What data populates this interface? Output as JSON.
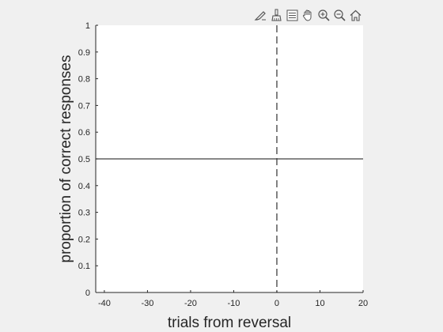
{
  "toolbar": {
    "icons": [
      "brush-edit-icon",
      "data-cursor-icon",
      "legend-icon",
      "pan-hand-icon",
      "zoom-in-icon",
      "zoom-out-icon",
      "home-icon"
    ]
  },
  "colors": {
    "figure_bg": "#f0f0f0",
    "axes_bg": "#ffffff",
    "axis_line": "#262626",
    "chance_line": "#404040",
    "reversal_line": "#404040"
  },
  "chart_data": {
    "type": "line",
    "title": "",
    "xlabel": "trials from reversal",
    "ylabel": "proportion of correct responses",
    "xlim": [
      -42,
      20
    ],
    "ylim": [
      0,
      1
    ],
    "xticks": [
      -40,
      -30,
      -20,
      -10,
      0,
      10,
      20
    ],
    "xtick_labels": [
      "-40",
      "-30",
      "-20",
      "-10",
      "0",
      "10",
      "20"
    ],
    "yticks": [
      0,
      0.1,
      0.2,
      0.3,
      0.4,
      0.5,
      0.6,
      0.7,
      0.8,
      0.9,
      1
    ],
    "ytick_labels": [
      "0",
      "0.1",
      "0.2",
      "0.3",
      "0.4",
      "0.5",
      "0.6",
      "0.7",
      "0.8",
      "0.9",
      "1"
    ],
    "grid": false,
    "reference_lines": [
      {
        "orientation": "horizontal",
        "value": 0.5,
        "style": "solid"
      },
      {
        "orientation": "vertical",
        "value": 0,
        "style": "dashed"
      }
    ],
    "series": []
  }
}
